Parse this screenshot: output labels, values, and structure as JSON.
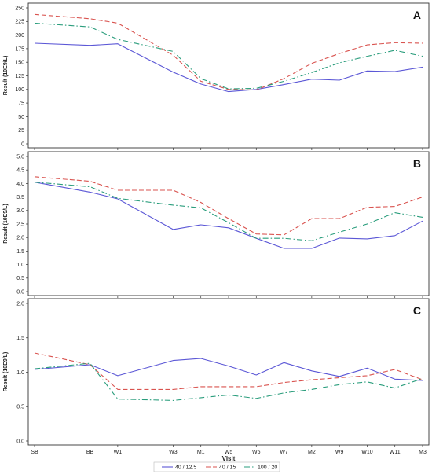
{
  "chart_data": [
    {
      "type": "line",
      "panel_letter": "A",
      "ylabel": "Result (10E9/L)",
      "ylim": [
        0,
        250
      ],
      "yticks": [
        "0",
        "25",
        "50",
        "75",
        "100",
        "125",
        "150",
        "175",
        "200",
        "225",
        "250"
      ],
      "series": [
        {
          "name": "40 / 12.5",
          "values": [
            185,
            181,
            184,
            132,
            110,
            96,
            100,
            109,
            119,
            117,
            134,
            133,
            141
          ]
        },
        {
          "name": "40 / 15",
          "values": [
            238,
            230,
            222,
            163,
            115,
            100,
            99,
            120,
            148,
            166,
            182,
            186,
            185
          ]
        },
        {
          "name": "100 / 20",
          "values": [
            222,
            215,
            192,
            170,
            120,
            101,
            102,
            115,
            131,
            149,
            161,
            172,
            161
          ]
        }
      ]
    },
    {
      "type": "line",
      "panel_letter": "B",
      "ylabel": "Result (10E9/L)",
      "ylim": [
        0,
        5
      ],
      "yticks": [
        "0.0",
        "0.5",
        "1.0",
        "1.5",
        "2.0",
        "2.5",
        "3.0",
        "3.5",
        "4.0",
        "4.5",
        "5.0"
      ],
      "series": [
        {
          "name": "40 / 12.5",
          "values": [
            4.05,
            3.68,
            3.43,
            2.3,
            2.47,
            2.36,
            1.97,
            1.6,
            1.6,
            1.98,
            1.95,
            2.07,
            2.61
          ]
        },
        {
          "name": "40 / 15",
          "values": [
            4.25,
            4.08,
            3.75,
            3.75,
            3.3,
            2.7,
            2.13,
            2.1,
            2.7,
            2.7,
            3.12,
            3.15,
            3.5
          ]
        },
        {
          "name": "100 / 20",
          "values": [
            4.05,
            3.88,
            3.45,
            3.2,
            3.1,
            2.55,
            1.97,
            1.97,
            1.88,
            2.2,
            2.5,
            2.92,
            2.75
          ]
        }
      ]
    },
    {
      "type": "line",
      "panel_letter": "C",
      "ylabel": "Result (10E9/L)",
      "xlabel": "Visit",
      "ylim": [
        0,
        2
      ],
      "yticks": [
        "0.0",
        "0.5",
        "1.0",
        "1.5",
        "2.0"
      ],
      "series": [
        {
          "name": "40 / 12.5",
          "values": [
            1.04,
            1.11,
            0.95,
            1.17,
            1.2,
            1.09,
            0.96,
            1.14,
            1.02,
            0.94,
            1.06,
            0.9,
            0.88
          ]
        },
        {
          "name": "40 / 15",
          "values": [
            1.28,
            1.11,
            0.75,
            0.75,
            0.79,
            0.79,
            0.79,
            0.85,
            0.89,
            0.92,
            0.95,
            1.04,
            0.89
          ]
        },
        {
          "name": "100 / 20",
          "values": [
            1.05,
            1.13,
            0.61,
            0.59,
            0.63,
            0.67,
            0.62,
            0.7,
            0.75,
            0.82,
            0.86,
            0.77,
            0.91
          ]
        }
      ]
    }
  ],
  "x_categories": [
    "SB",
    "BB",
    "W1",
    "W3",
    "M1",
    "W5",
    "W6",
    "W7",
    "M2",
    "W9",
    "W10",
    "W11",
    "M3"
  ],
  "x_positions": [
    0,
    2,
    3,
    5,
    6,
    7,
    8,
    9,
    10,
    11,
    12,
    13,
    14
  ],
  "colors": {
    "40 / 12.5": "#5b57d6",
    "40 / 15": "#d9534f",
    "100 / 20": "#2a9d7c"
  },
  "line_styles": {
    "40 / 12.5": "solid",
    "40 / 15": "dashed",
    "100 / 20": "dash-dot"
  },
  "legend": {
    "placement": "bottom-center",
    "items": [
      "40 / 12.5",
      "40 / 15",
      "100 / 20"
    ]
  }
}
